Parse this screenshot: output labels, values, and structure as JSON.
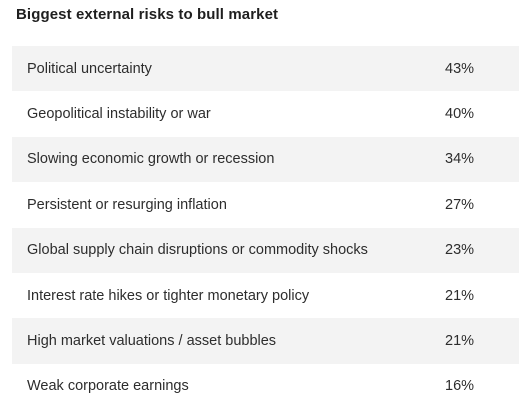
{
  "chart_data": {
    "type": "table",
    "title": "Biggest external risks to bull market",
    "categories": [
      "Political uncertainty",
      "Geopolitical instability or war",
      "Slowing economic growth or recession",
      "Persistent or resurging inflation",
      "Global supply chain disruptions or commodity shocks",
      "Interest rate hikes or tighter monetary policy",
      "High market valuations / asset bubbles",
      "Weak corporate earnings"
    ],
    "values": [
      43,
      40,
      34,
      27,
      23,
      21,
      21,
      16
    ],
    "value_labels": [
      "43%",
      "40%",
      "34%",
      "27%",
      "23%",
      "21%",
      "21%",
      "16%"
    ],
    "row_shading": "alternating, starting with shaded first row",
    "shade_color": "#f3f3f3"
  }
}
